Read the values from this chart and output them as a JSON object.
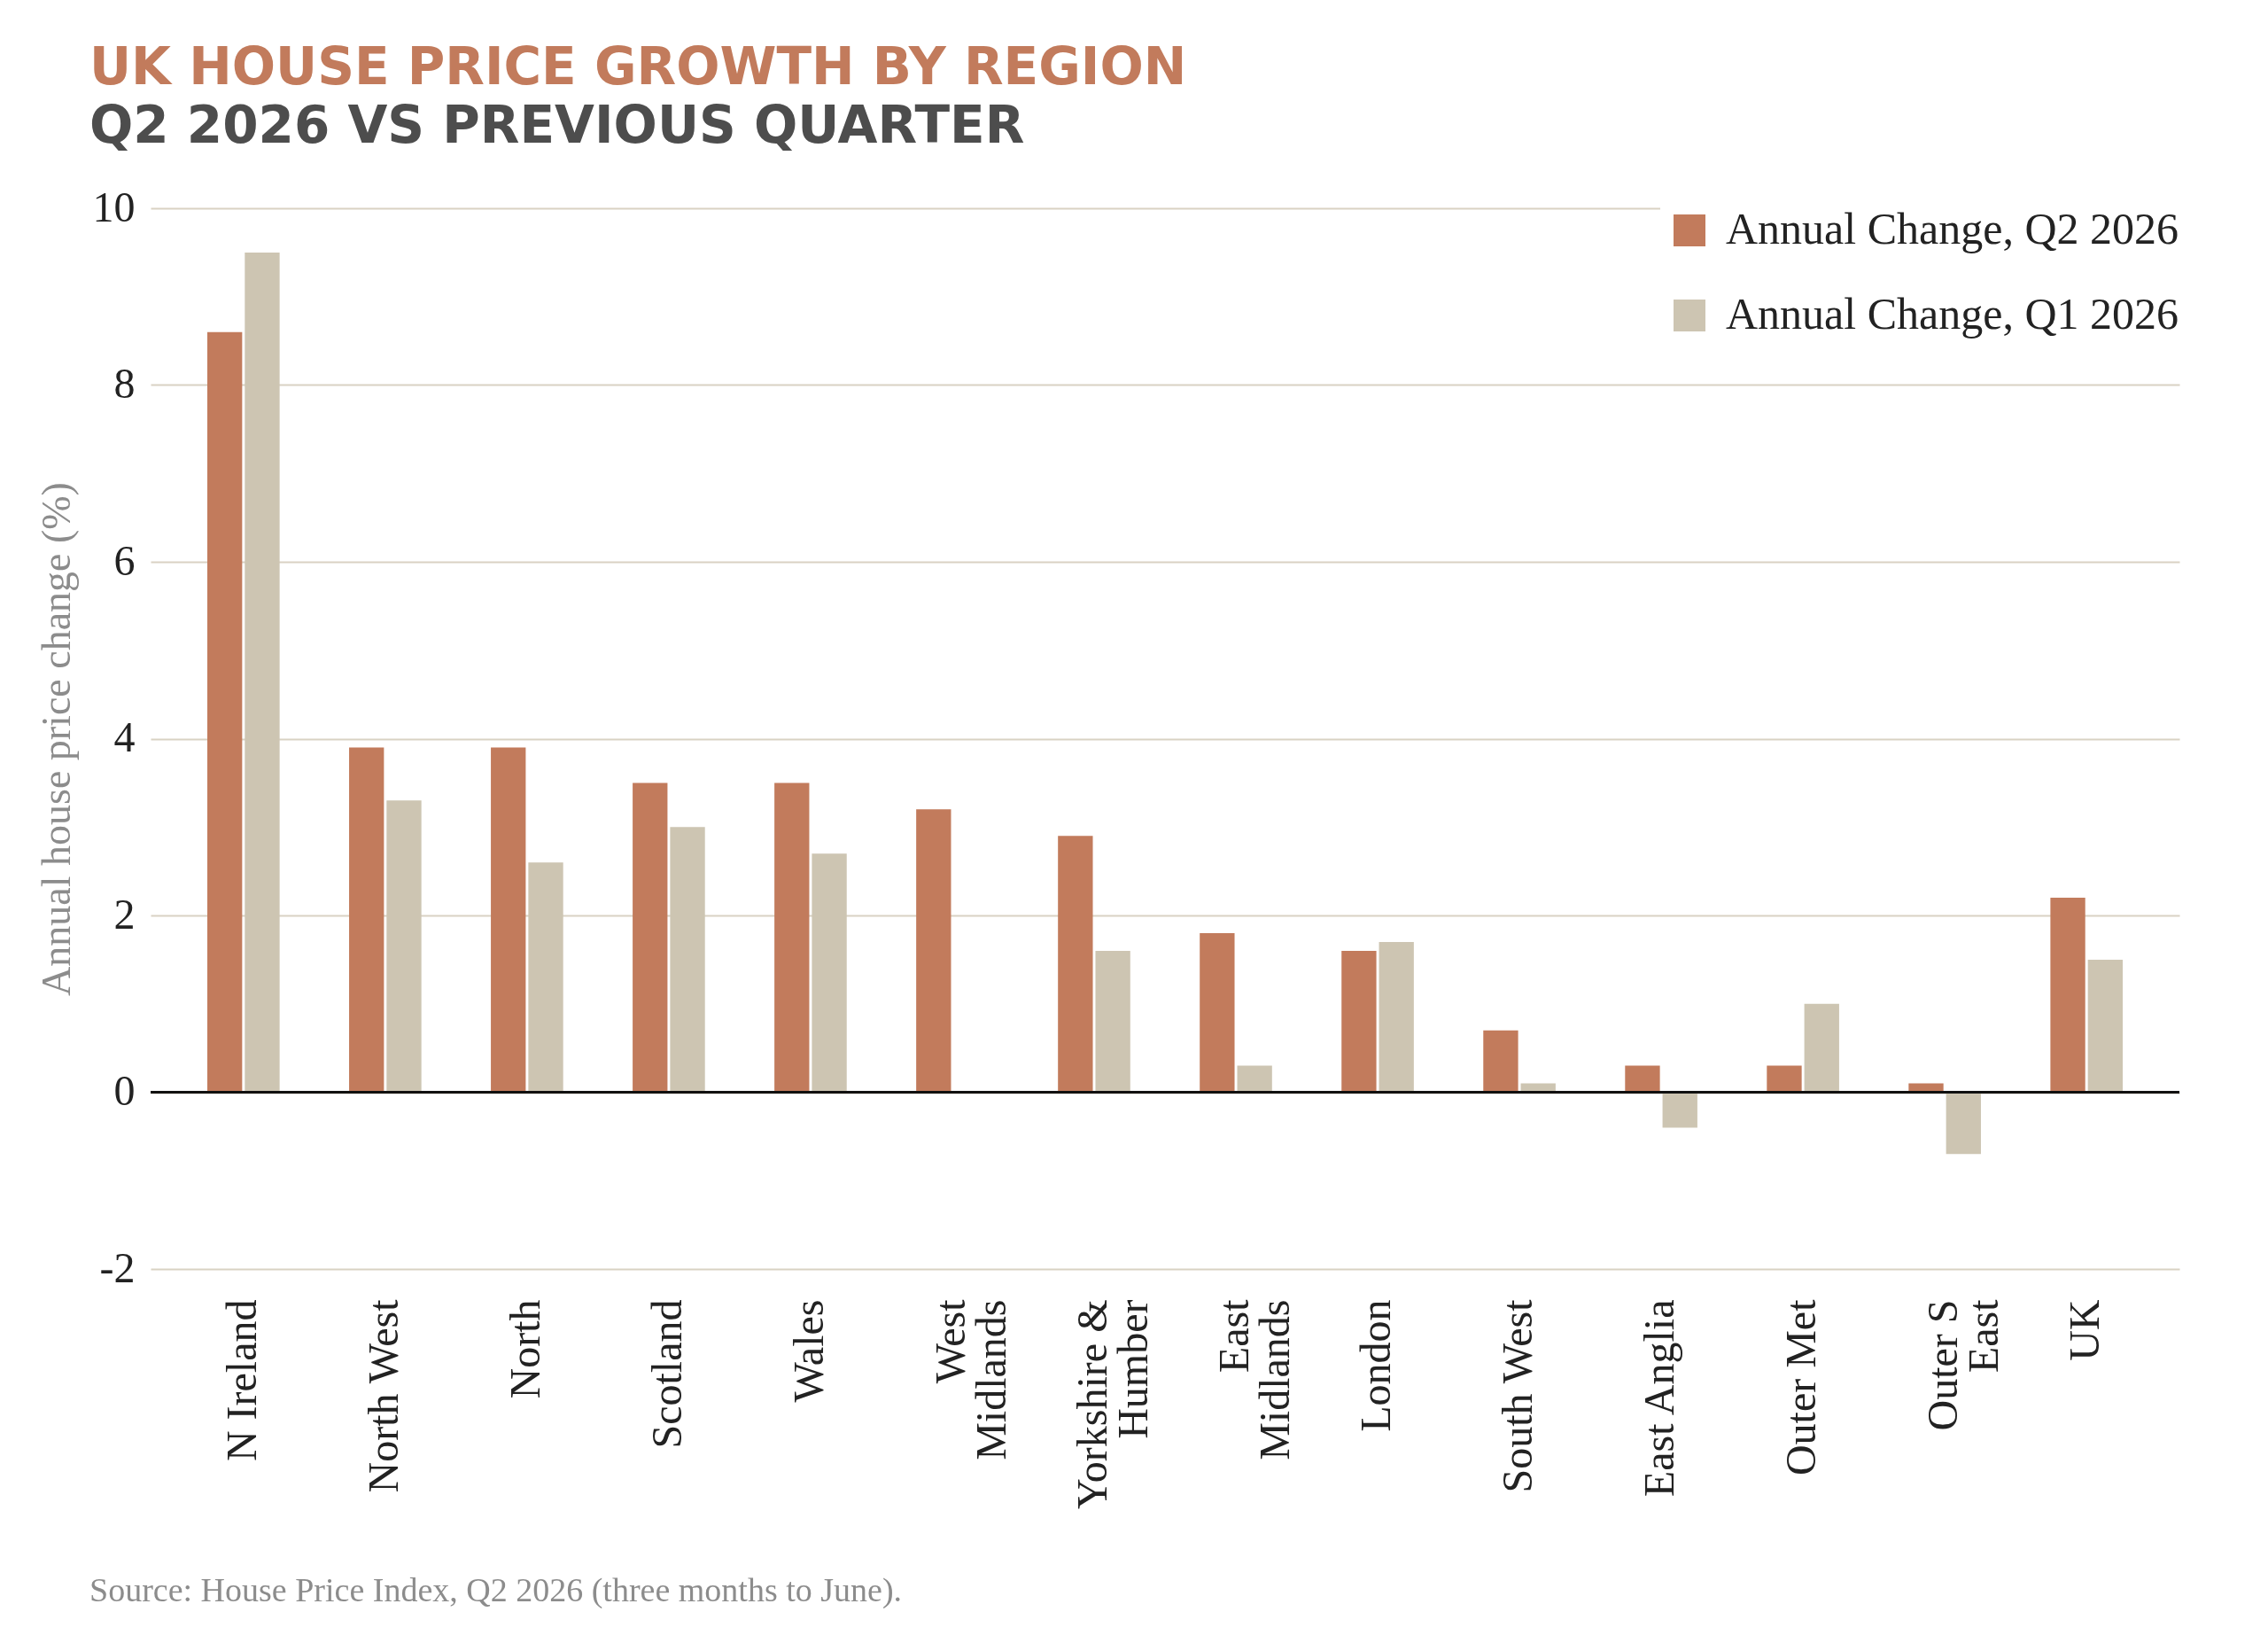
{
  "chart_data": {
    "type": "bar",
    "title": "UK HOUSE PRICE GROWTH BY REGION",
    "subtitle": "Q2 2026 VS PREVIOUS QUARTER",
    "ylabel": "Annual house price change (%)",
    "categories": [
      "N Ireland",
      "North West",
      "North",
      "Scotland",
      "Wales",
      "West\nMidlands",
      "Yorkshire &\nHumber",
      "East\nMidlands",
      "London",
      "South West",
      "East Anglia",
      "Outer Met",
      "Outer S\nEast",
      "UK"
    ],
    "series": [
      {
        "name": "Annual Change, Q2 2026",
        "color": "#c27b5c",
        "values": [
          8.6,
          3.9,
          3.9,
          3.5,
          3.5,
          3.2,
          2.9,
          1.8,
          1.6,
          0.7,
          0.3,
          0.3,
          0.1,
          2.2
        ]
      },
      {
        "name": "Annual Change, Q1 2026",
        "color": "#cdc5b2",
        "values": [
          9.5,
          3.3,
          2.6,
          3.0,
          2.7,
          null,
          1.6,
          0.3,
          1.7,
          0.1,
          -0.4,
          1.0,
          -0.7,
          1.5
        ]
      }
    ],
    "ylim": [
      -2,
      10
    ],
    "yticks": [
      -2,
      0,
      2,
      4,
      6,
      8,
      10
    ],
    "grid": "y",
    "legend": "top right",
    "annotations": [
      "Source: House Price Index, Q2 2026 (three months to June)."
    ]
  }
}
